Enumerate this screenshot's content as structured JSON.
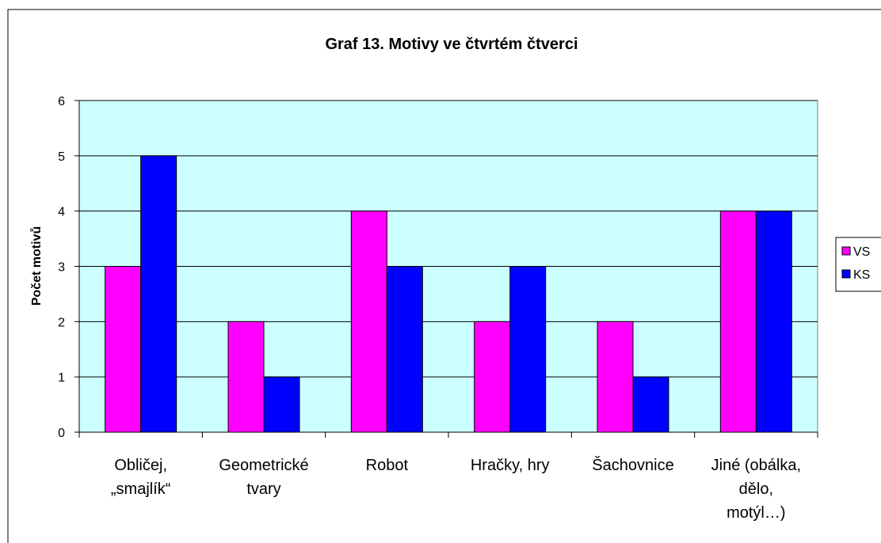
{
  "chart_data": {
    "type": "bar",
    "title": "Graf 13. Motivy ve čtvrtém čtverci",
    "y_label": "Počet motivů",
    "categories": [
      "Obličej,\n„smajlík“",
      "Geometrické\ntvary",
      "Robot",
      "Hračky, hry",
      "Šachovnice",
      "Jiné (obálka,\ndělo,\nmotýl…)"
    ],
    "series": [
      {
        "name": "VS",
        "color": "#ff00ff",
        "values": [
          3,
          2,
          4,
          2,
          2,
          4
        ]
      },
      {
        "name": "KS",
        "color": "#0000ff",
        "values": [
          5,
          1,
          3,
          3,
          1,
          4
        ]
      }
    ],
    "ylim": [
      0,
      6
    ],
    "yticks": [
      0,
      1,
      2,
      3,
      4,
      5,
      6
    ],
    "grid": true,
    "legend": "right"
  }
}
